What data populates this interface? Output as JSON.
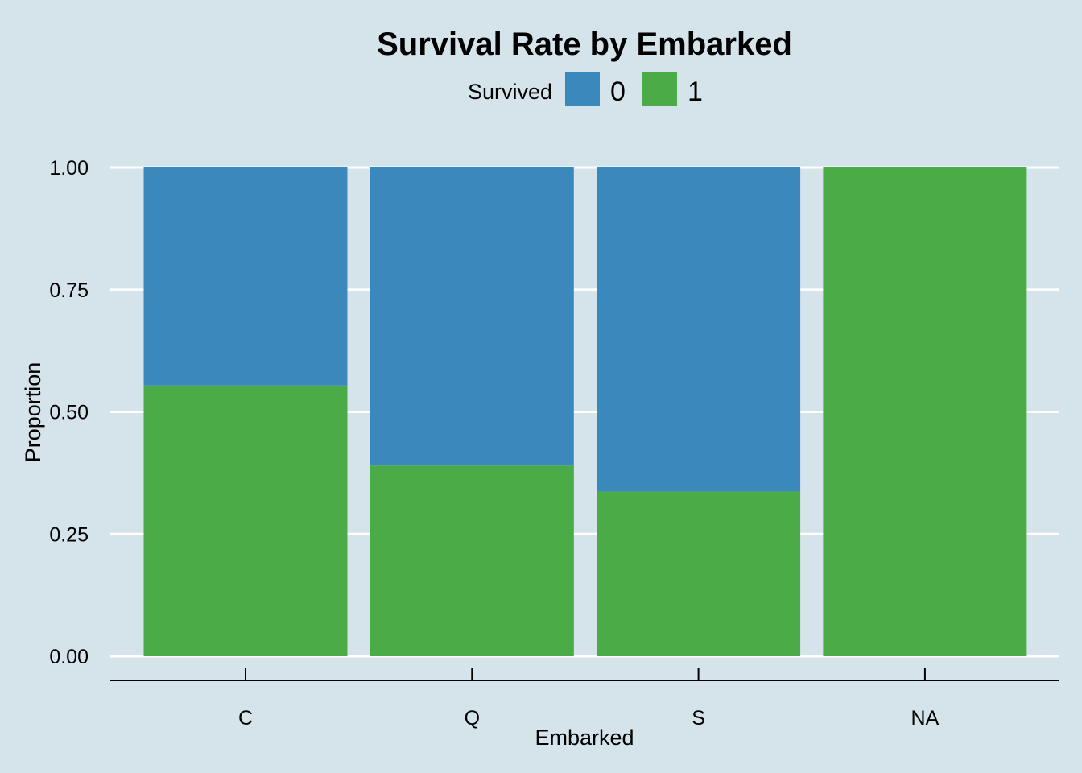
{
  "chart_data": {
    "type": "bar",
    "stacked": true,
    "title": "Survival Rate by Embarked",
    "xlabel": "Embarked",
    "ylabel": "Proportion",
    "ylim": [
      0,
      1
    ],
    "yticks": [
      "0.00",
      "0.25",
      "0.50",
      "0.75",
      "1.00"
    ],
    "categories": [
      "C",
      "Q",
      "S",
      "NA"
    ],
    "legend": {
      "title": "Survived",
      "position": "top"
    },
    "series": [
      {
        "name": "0",
        "color": "#3b88bd",
        "values": [
          0.446,
          0.61,
          0.663,
          0.0
        ]
      },
      {
        "name": "1",
        "color": "#4aab47",
        "values": [
          0.554,
          0.39,
          0.337,
          1.0
        ]
      }
    ],
    "grid": {
      "horizontal": true,
      "vertical": false,
      "color": "#ffffff"
    },
    "background": "#d5e4eb"
  }
}
